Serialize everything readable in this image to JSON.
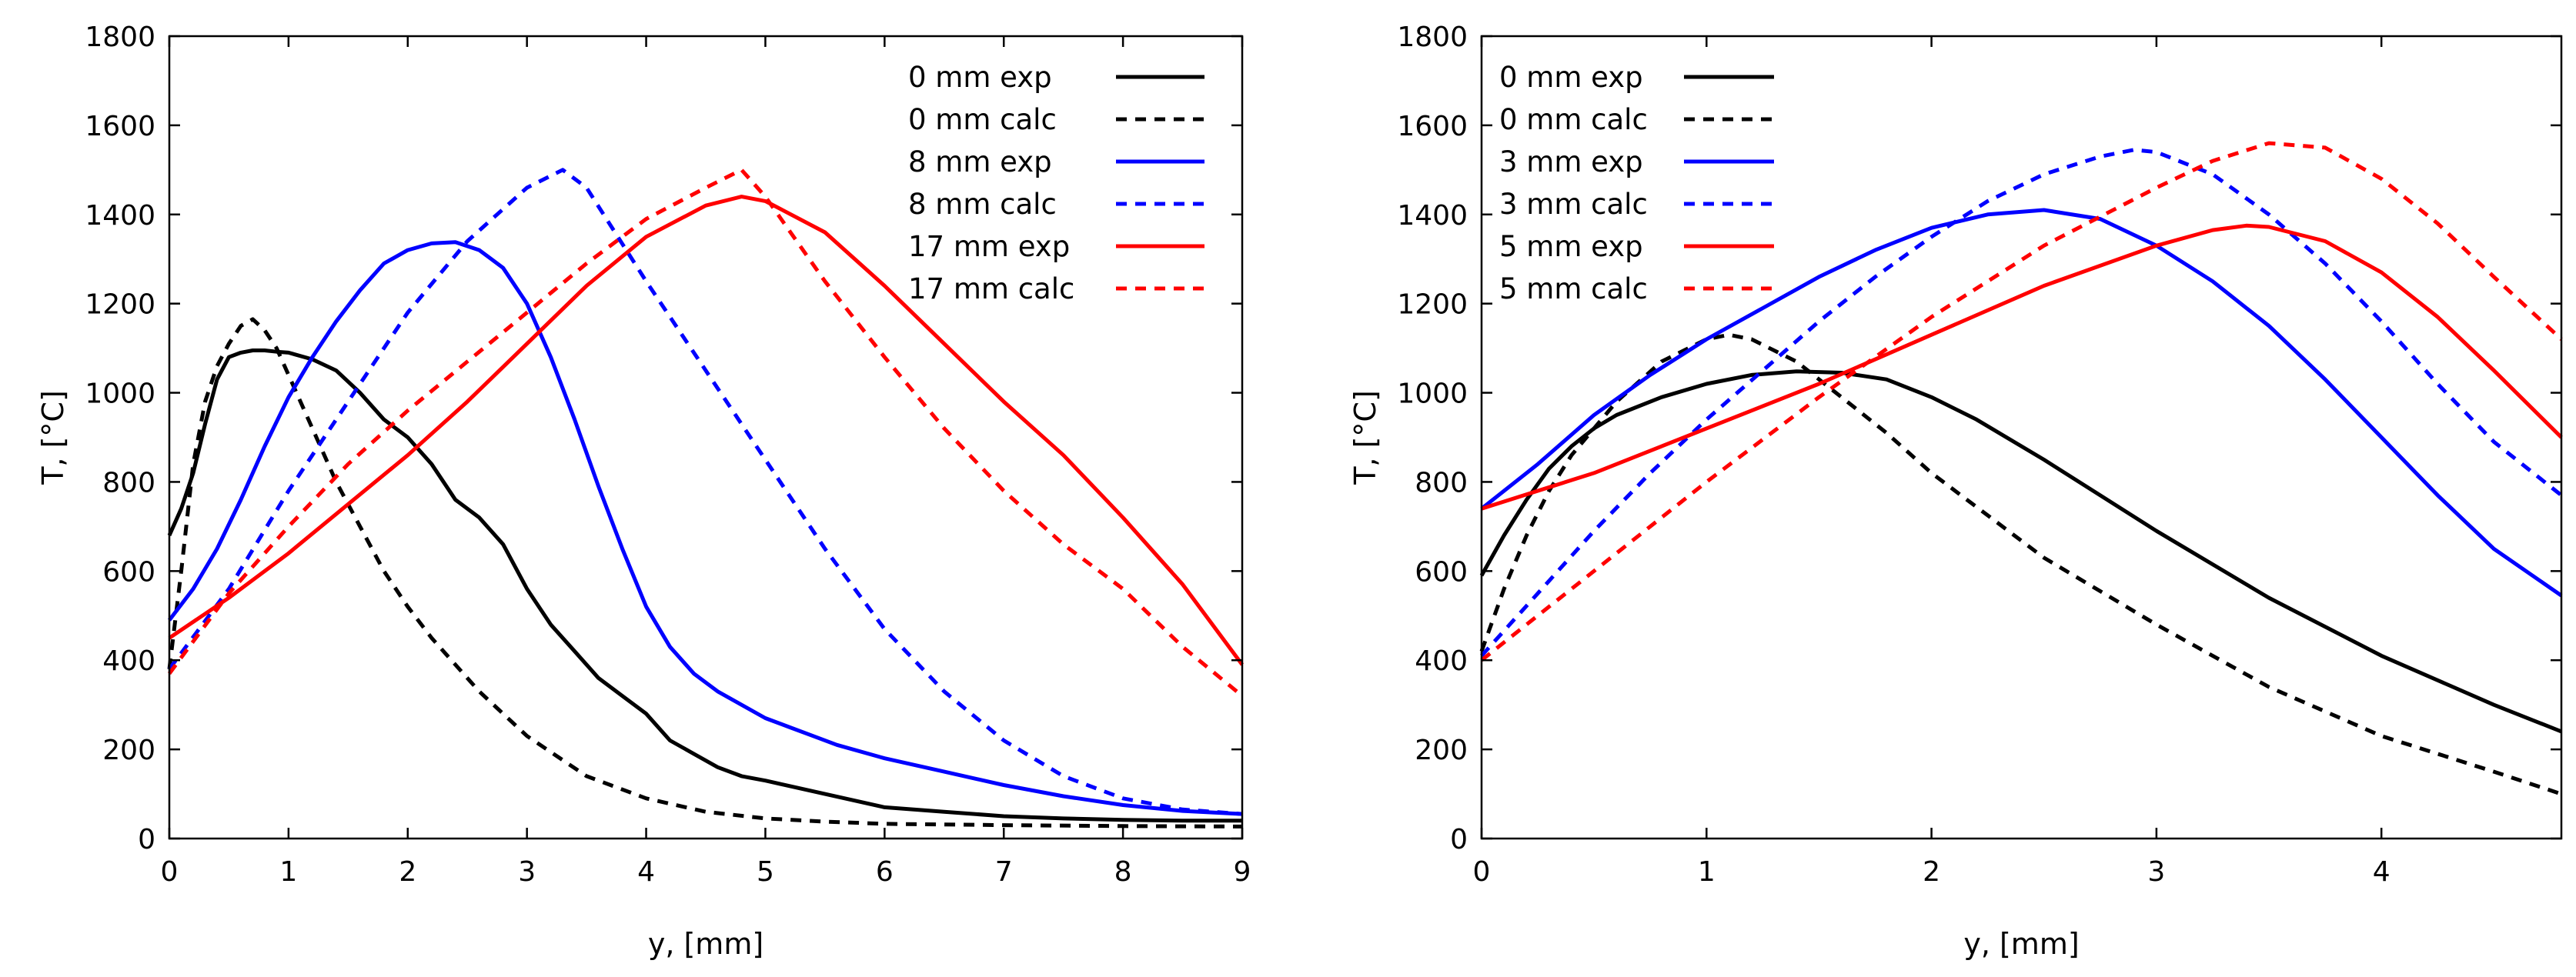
{
  "chart_data": [
    {
      "type": "line",
      "xlabel": "y, [mm]",
      "ylabel": "T, [°C]",
      "xlim": [
        0,
        9
      ],
      "ylim": [
        0,
        1800
      ],
      "xticks": [
        0,
        1,
        2,
        3,
        4,
        5,
        6,
        7,
        8,
        9
      ],
      "yticks": [
        0,
        200,
        400,
        600,
        800,
        1000,
        1200,
        1400,
        1600,
        1800
      ],
      "legend_position": "top-right",
      "series": [
        {
          "name": "0 mm exp",
          "color": "#000000",
          "dash": "solid",
          "x": [
            0,
            0.1,
            0.2,
            0.3,
            0.4,
            0.5,
            0.6,
            0.7,
            0.8,
            0.9,
            1.0,
            1.2,
            1.4,
            1.6,
            1.8,
            2.0,
            2.2,
            2.4,
            2.6,
            2.8,
            3.0,
            3.2,
            3.4,
            3.6,
            3.8,
            4.0,
            4.2,
            4.4,
            4.6,
            4.8,
            5.0,
            5.5,
            6.0,
            6.5,
            7.0,
            7.5,
            8.0,
            8.5,
            9.0
          ],
          "y": [
            680,
            740,
            820,
            930,
            1030,
            1080,
            1090,
            1095,
            1095,
            1092,
            1090,
            1075,
            1050,
            1000,
            940,
            900,
            840,
            760,
            720,
            660,
            560,
            480,
            420,
            360,
            320,
            280,
            220,
            190,
            160,
            140,
            130,
            100,
            70,
            60,
            50,
            45,
            42,
            40,
            40
          ]
        },
        {
          "name": "0 mm calc",
          "color": "#000000",
          "dash": "dashed",
          "x": [
            0,
            0.1,
            0.2,
            0.3,
            0.4,
            0.5,
            0.6,
            0.7,
            0.8,
            0.9,
            1.0,
            1.2,
            1.4,
            1.6,
            1.8,
            2.0,
            2.2,
            2.4,
            2.6,
            2.8,
            3.0,
            3.5,
            4.0,
            4.5,
            5.0,
            5.5,
            6.0,
            7.0,
            8.0,
            9.0
          ],
          "y": [
            380,
            600,
            840,
            980,
            1060,
            1110,
            1150,
            1165,
            1140,
            1100,
            1040,
            920,
            800,
            700,
            600,
            520,
            450,
            390,
            330,
            280,
            230,
            140,
            90,
            60,
            45,
            38,
            33,
            30,
            28,
            27
          ]
        },
        {
          "name": "8 mm exp",
          "color": "#0000ff",
          "dash": "solid",
          "x": [
            0,
            0.2,
            0.4,
            0.6,
            0.8,
            1.0,
            1.2,
            1.4,
            1.6,
            1.8,
            2.0,
            2.2,
            2.4,
            2.6,
            2.8,
            3.0,
            3.2,
            3.4,
            3.6,
            3.8,
            4.0,
            4.2,
            4.4,
            4.6,
            4.8,
            5.0,
            5.2,
            5.4,
            5.6,
            6.0,
            6.5,
            7.0,
            7.5,
            8.0,
            8.5,
            9.0
          ],
          "y": [
            490,
            560,
            650,
            760,
            880,
            990,
            1080,
            1160,
            1230,
            1290,
            1320,
            1335,
            1338,
            1320,
            1280,
            1200,
            1080,
            940,
            790,
            650,
            520,
            430,
            370,
            330,
            300,
            270,
            250,
            230,
            210,
            180,
            150,
            120,
            95,
            75,
            62,
            55
          ]
        },
        {
          "name": "8 mm calc",
          "color": "#0000ff",
          "dash": "dashed",
          "x": [
            0,
            0.5,
            1.0,
            1.5,
            2.0,
            2.5,
            3.0,
            3.3,
            3.5,
            4.0,
            4.5,
            5.0,
            5.5,
            6.0,
            6.5,
            7.0,
            7.5,
            8.0,
            8.5,
            9.0
          ],
          "y": [
            380,
            560,
            780,
            980,
            1180,
            1340,
            1460,
            1500,
            1460,
            1250,
            1050,
            850,
            650,
            470,
            330,
            220,
            140,
            90,
            65,
            55
          ]
        },
        {
          "name": "17 mm exp",
          "color": "#ff0000",
          "dash": "solid",
          "x": [
            0,
            0.5,
            1.0,
            1.5,
            2.0,
            2.5,
            3.0,
            3.5,
            4.0,
            4.5,
            4.8,
            5.0,
            5.5,
            6.0,
            6.5,
            7.0,
            7.5,
            8.0,
            8.5,
            9.0
          ],
          "y": [
            450,
            540,
            640,
            750,
            860,
            980,
            1110,
            1240,
            1350,
            1420,
            1440,
            1430,
            1360,
            1240,
            1110,
            980,
            860,
            720,
            570,
            390
          ]
        },
        {
          "name": "17 mm calc",
          "color": "#ff0000",
          "dash": "dashed",
          "x": [
            0,
            0.5,
            1.0,
            1.5,
            2.0,
            2.5,
            3.0,
            3.5,
            4.0,
            4.5,
            4.8,
            5.0,
            5.5,
            6.0,
            6.5,
            7.0,
            7.5,
            8.0,
            8.5,
            9.0
          ],
          "y": [
            370,
            550,
            700,
            840,
            960,
            1070,
            1180,
            1290,
            1390,
            1460,
            1500,
            1440,
            1250,
            1080,
            920,
            780,
            660,
            560,
            430,
            320
          ]
        }
      ]
    },
    {
      "type": "line",
      "xlabel": "y, [mm]",
      "ylabel": "T, [°C]",
      "xlim": [
        0,
        4.8
      ],
      "ylim": [
        0,
        1800
      ],
      "xticks": [
        0,
        1,
        2,
        3,
        4
      ],
      "yticks": [
        0,
        200,
        400,
        600,
        800,
        1000,
        1200,
        1400,
        1600,
        1800
      ],
      "legend_position": "top-left",
      "series": [
        {
          "name": "0 mm exp",
          "color": "#000000",
          "dash": "solid",
          "x": [
            0,
            0.1,
            0.2,
            0.3,
            0.4,
            0.5,
            0.6,
            0.8,
            1.0,
            1.2,
            1.4,
            1.6,
            1.8,
            2.0,
            2.2,
            2.5,
            3.0,
            3.5,
            4.0,
            4.5,
            4.8
          ],
          "y": [
            590,
            680,
            760,
            830,
            880,
            920,
            950,
            990,
            1020,
            1040,
            1048,
            1045,
            1030,
            990,
            940,
            850,
            690,
            540,
            410,
            300,
            240
          ]
        },
        {
          "name": "0 mm calc",
          "color": "#000000",
          "dash": "dashed",
          "x": [
            0,
            0.1,
            0.2,
            0.3,
            0.4,
            0.6,
            0.8,
            1.0,
            1.1,
            1.2,
            1.4,
            1.6,
            1.8,
            2.0,
            2.5,
            3.0,
            3.5,
            4.0,
            4.5,
            4.8
          ],
          "y": [
            420,
            560,
            680,
            780,
            860,
            980,
            1070,
            1120,
            1130,
            1120,
            1070,
            990,
            910,
            820,
            630,
            480,
            340,
            230,
            150,
            100
          ]
        },
        {
          "name": "3 mm exp",
          "color": "#0000ff",
          "dash": "solid",
          "x": [
            0,
            0.25,
            0.5,
            0.75,
            1.0,
            1.25,
            1.5,
            1.75,
            2.0,
            2.25,
            2.5,
            2.75,
            3.0,
            3.25,
            3.5,
            3.75,
            4.0,
            4.25,
            4.5,
            4.8
          ],
          "y": [
            740,
            840,
            950,
            1040,
            1120,
            1190,
            1260,
            1320,
            1370,
            1400,
            1410,
            1390,
            1330,
            1250,
            1150,
            1030,
            900,
            770,
            650,
            545
          ]
        },
        {
          "name": "3 mm calc",
          "color": "#0000ff",
          "dash": "dashed",
          "x": [
            0,
            0.25,
            0.5,
            0.75,
            1.0,
            1.25,
            1.5,
            1.75,
            2.0,
            2.25,
            2.5,
            2.75,
            2.9,
            3.0,
            3.25,
            3.5,
            3.75,
            4.0,
            4.25,
            4.5,
            4.8
          ],
          "y": [
            410,
            550,
            690,
            820,
            940,
            1050,
            1160,
            1260,
            1350,
            1430,
            1490,
            1530,
            1545,
            1540,
            1490,
            1400,
            1290,
            1160,
            1020,
            890,
            770
          ]
        },
        {
          "name": "5 mm exp",
          "color": "#ff0000",
          "dash": "solid",
          "x": [
            0,
            0.5,
            1.0,
            1.5,
            2.0,
            2.5,
            3.0,
            3.25,
            3.4,
            3.5,
            3.75,
            4.0,
            4.25,
            4.5,
            4.8
          ],
          "y": [
            740,
            820,
            920,
            1020,
            1130,
            1240,
            1330,
            1365,
            1375,
            1372,
            1340,
            1270,
            1170,
            1050,
            900
          ]
        },
        {
          "name": "5 mm calc",
          "color": "#ff0000",
          "dash": "dashed",
          "x": [
            0,
            0.5,
            1.0,
            1.5,
            2.0,
            2.5,
            3.0,
            3.25,
            3.5,
            3.75,
            4.0,
            4.25,
            4.5,
            4.8
          ],
          "y": [
            400,
            600,
            800,
            990,
            1170,
            1330,
            1460,
            1520,
            1560,
            1550,
            1480,
            1380,
            1260,
            1120
          ]
        }
      ]
    }
  ]
}
